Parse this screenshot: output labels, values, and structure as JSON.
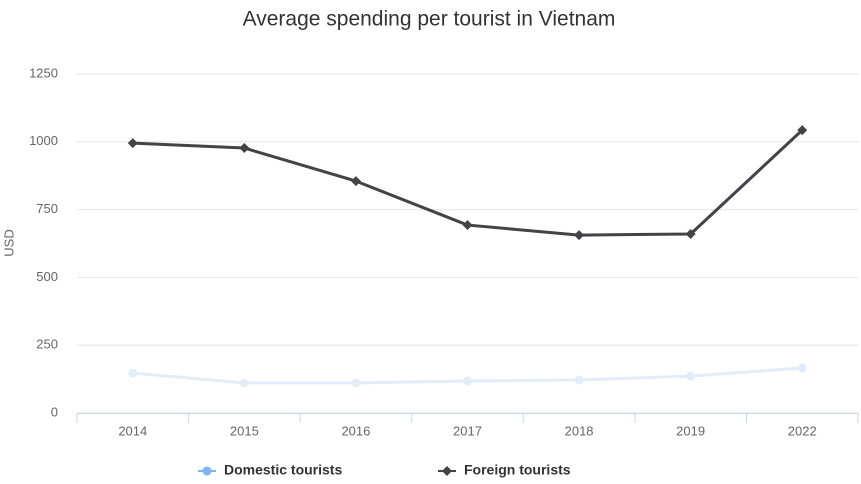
{
  "chart_data": {
    "type": "line",
    "title": "Average spending per tourist in Vietnam",
    "y_label": "USD",
    "categories": [
      "2014",
      "2015",
      "2016",
      "2017",
      "2018",
      "2019",
      "2022"
    ],
    "series": [
      {
        "name": "Domestic tourists",
        "color": "#7cb5ec",
        "marker": "circle",
        "values": [
          147,
          111,
          111,
          118,
          122,
          136,
          166
        ]
      },
      {
        "name": "Foreign tourists",
        "color": "#434348",
        "marker": "diamond",
        "values": [
          995,
          977,
          855,
          693,
          656,
          660,
          1043
        ]
      }
    ],
    "ylim": [
      0,
      1250
    ],
    "yticks": [
      0,
      250,
      500,
      750,
      1000,
      1250
    ],
    "grid": true,
    "legend": "bottom"
  }
}
